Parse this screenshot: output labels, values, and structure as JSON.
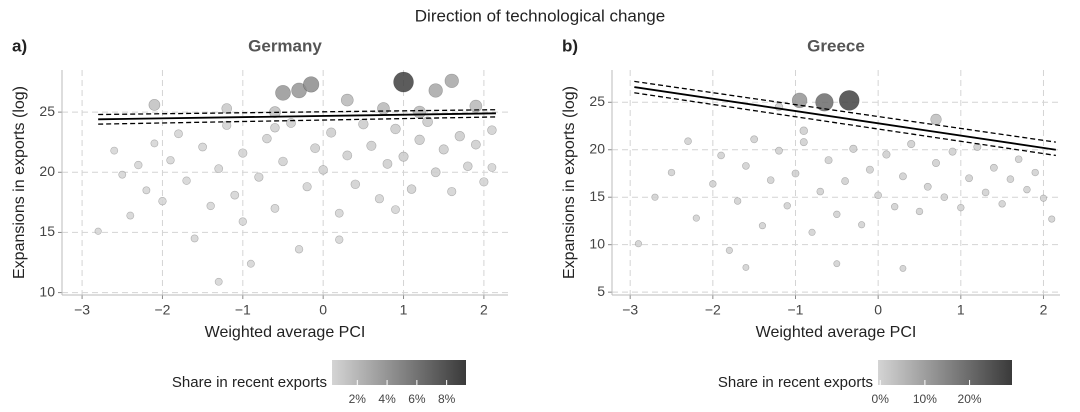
{
  "title": "Direction of technological change",
  "chart_data": [
    {
      "type": "scatter",
      "panel_label": "a)",
      "title": "Germany",
      "xlabel": "Weighted average PCI",
      "ylabel": "Expansions in exports (log)",
      "xlim": [
        -3.25,
        2.3
      ],
      "ylim": [
        9.8,
        28.5
      ],
      "xticks": [
        {
          "value": -3,
          "label": "−3"
        },
        {
          "value": -2,
          "label": "−2"
        },
        {
          "value": -1,
          "label": "−1"
        },
        0,
        1,
        2
      ],
      "yticks": [
        10,
        15,
        20,
        25
      ],
      "grid": true,
      "series": [
        {
          "name": "Products",
          "x": [
            -2.8,
            -2.6,
            -2.5,
            -2.4,
            -2.3,
            -2.2,
            -2.1,
            -2.0,
            -1.9,
            -1.8,
            -1.7,
            -1.6,
            -1.5,
            -1.4,
            -1.3,
            -1.3,
            -1.2,
            -1.1,
            -1.0,
            -1.0,
            -0.9,
            -0.8,
            -0.7,
            -0.6,
            -0.5,
            -0.4,
            -0.3,
            -0.2,
            -0.1,
            0.0,
            0.1,
            0.2,
            0.3,
            0.4,
            0.5,
            0.6,
            0.7,
            0.8,
            0.9,
            1.0,
            1.1,
            1.2,
            1.3,
            1.4,
            1.5,
            1.6,
            1.7,
            1.8,
            1.9,
            2.0,
            2.1,
            2.1,
            0.2,
            -0.6,
            0.9,
            -2.1,
            -1.2,
            -0.6,
            -0.5,
            -0.3,
            -0.15,
            0.3,
            1.0,
            1.4,
            1.6,
            1.9,
            0.75,
            1.2
          ],
          "values": [
            15.1,
            21.8,
            19.8,
            16.4,
            20.6,
            18.5,
            22.4,
            17.6,
            21.0,
            23.2,
            19.3,
            14.5,
            22.1,
            17.2,
            10.9,
            20.3,
            23.9,
            18.1,
            21.6,
            15.9,
            12.4,
            19.6,
            22.8,
            17.0,
            20.9,
            24.1,
            13.6,
            18.8,
            22.0,
            20.2,
            23.3,
            16.6,
            21.4,
            19.0,
            24.0,
            22.2,
            17.8,
            20.7,
            23.6,
            21.3,
            18.6,
            22.7,
            24.2,
            20.0,
            21.9,
            18.4,
            23.0,
            20.5,
            22.3,
            19.2,
            23.5,
            20.4,
            14.4,
            23.7,
            16.9,
            25.6,
            25.3,
            25.0,
            26.6,
            26.8,
            27.3,
            26.0,
            27.5,
            26.8,
            27.6,
            25.5,
            25.3,
            25.0
          ],
          "share": [
            0.1,
            0.2,
            0.2,
            0.2,
            0.3,
            0.2,
            0.2,
            0.3,
            0.3,
            0.4,
            0.3,
            0.2,
            0.4,
            0.3,
            0.2,
            0.4,
            0.5,
            0.4,
            0.5,
            0.3,
            0.2,
            0.5,
            0.6,
            0.4,
            0.6,
            0.7,
            0.3,
            0.5,
            0.7,
            0.6,
            0.8,
            0.4,
            0.7,
            0.6,
            0.9,
            0.8,
            0.5,
            0.7,
            0.9,
            0.8,
            0.6,
            0.9,
            1,
            0.7,
            0.8,
            0.5,
            0.9,
            0.6,
            0.7,
            0.5,
            0.6,
            0.4,
            0.3,
            0.6,
            0.4,
            1.5,
            1,
            1.5,
            4,
            4,
            4.5,
            2,
            9,
            3,
            3,
            2,
            2,
            2
          ]
        }
      ],
      "fit": {
        "x": [
          -2.8,
          2.15
        ],
        "y": [
          24.4,
          24.9
        ],
        "upper": [
          24.8,
          25.2
        ],
        "lower": [
          24.0,
          24.6
        ]
      },
      "colorbar": {
        "title": "Share in recent exports",
        "lim": [
          0.3,
          9.3
        ],
        "ticks": [
          {
            "value": 2,
            "label": "2%"
          },
          {
            "value": 4,
            "label": "4%"
          },
          {
            "value": 6,
            "label": "6%"
          },
          {
            "value": 8,
            "label": "8%"
          }
        ],
        "colors": [
          "#d4d4d4",
          "#3a3a3a"
        ]
      }
    },
    {
      "type": "scatter",
      "panel_label": "b)",
      "title": "Greece",
      "xlabel": "Weighted average PCI",
      "ylabel": "Expansions in exports (log)",
      "xlim": [
        -3.22,
        2.2
      ],
      "ylim": [
        4.7,
        28.4
      ],
      "xticks": [
        {
          "value": -3,
          "label": "−3"
        },
        {
          "value": -2,
          "label": "−2"
        },
        {
          "value": -1,
          "label": "−1"
        },
        0,
        1,
        2
      ],
      "yticks": [
        5,
        10,
        15,
        20,
        25
      ],
      "grid": true,
      "series": [
        {
          "name": "Products",
          "x": [
            -2.9,
            -2.7,
            -2.5,
            -2.3,
            -2.2,
            -2.0,
            -1.9,
            -1.8,
            -1.7,
            -1.6,
            -1.5,
            -1.4,
            -1.3,
            -1.2,
            -1.1,
            -1.0,
            -0.9,
            -0.8,
            -0.7,
            -0.6,
            -0.5,
            -0.4,
            -0.3,
            -0.2,
            -0.1,
            0.0,
            0.1,
            0.2,
            0.3,
            0.4,
            0.5,
            0.6,
            0.7,
            0.8,
            0.9,
            1.0,
            1.1,
            1.2,
            1.3,
            1.4,
            1.5,
            1.6,
            1.7,
            1.8,
            1.9,
            2.0,
            2.1,
            -0.5,
            0.3,
            -1.6,
            -1.2,
            -0.9,
            0.7,
            -0.95,
            -0.65,
            -0.35
          ],
          "values": [
            10.1,
            15.0,
            17.6,
            20.9,
            12.8,
            16.4,
            19.4,
            9.4,
            14.6,
            18.3,
            21.1,
            12.0,
            16.8,
            19.9,
            14.1,
            17.5,
            20.8,
            11.3,
            15.6,
            18.9,
            13.2,
            16.7,
            20.1,
            12.1,
            17.9,
            15.2,
            19.5,
            14.0,
            17.2,
            20.6,
            13.5,
            16.1,
            18.6,
            15.0,
            19.8,
            13.9,
            17.0,
            20.3,
            15.5,
            18.1,
            14.3,
            16.9,
            19.0,
            15.8,
            17.6,
            14.9,
            12.7,
            8.0,
            7.5,
            7.6,
            24.5,
            22.0,
            23.2,
            25.2,
            25.0,
            25.2
          ],
          "share": [
            0.3,
            0.3,
            0.4,
            0.5,
            0.3,
            0.4,
            0.5,
            0.3,
            0.4,
            0.5,
            0.6,
            0.3,
            0.5,
            0.6,
            0.4,
            0.6,
            0.7,
            0.3,
            0.5,
            0.7,
            0.4,
            0.6,
            0.8,
            0.3,
            0.7,
            0.5,
            0.8,
            0.4,
            0.6,
            0.8,
            0.4,
            0.6,
            0.7,
            0.5,
            0.7,
            0.4,
            0.6,
            0.7,
            0.5,
            0.6,
            0.4,
            0.5,
            0.5,
            0.4,
            0.4,
            0.3,
            0.3,
            0.2,
            0.2,
            0.2,
            1,
            1,
            4,
            12,
            20,
            28
          ]
        }
      ],
      "fit": {
        "x": [
          -2.95,
          2.15
        ],
        "y": [
          26.6,
          20.0
        ],
        "upper": [
          27.2,
          20.8
        ],
        "lower": [
          26.0,
          19.4
        ]
      },
      "colorbar": {
        "title": "Share in recent exports",
        "lim": [
          -0.5,
          29.5
        ],
        "ticks": [
          {
            "value": 0,
            "label": "0%"
          },
          {
            "value": 10,
            "label": "10%"
          },
          {
            "value": 20,
            "label": "20%"
          }
        ],
        "colors": [
          "#d4d4d4",
          "#3a3a3a"
        ]
      }
    }
  ]
}
